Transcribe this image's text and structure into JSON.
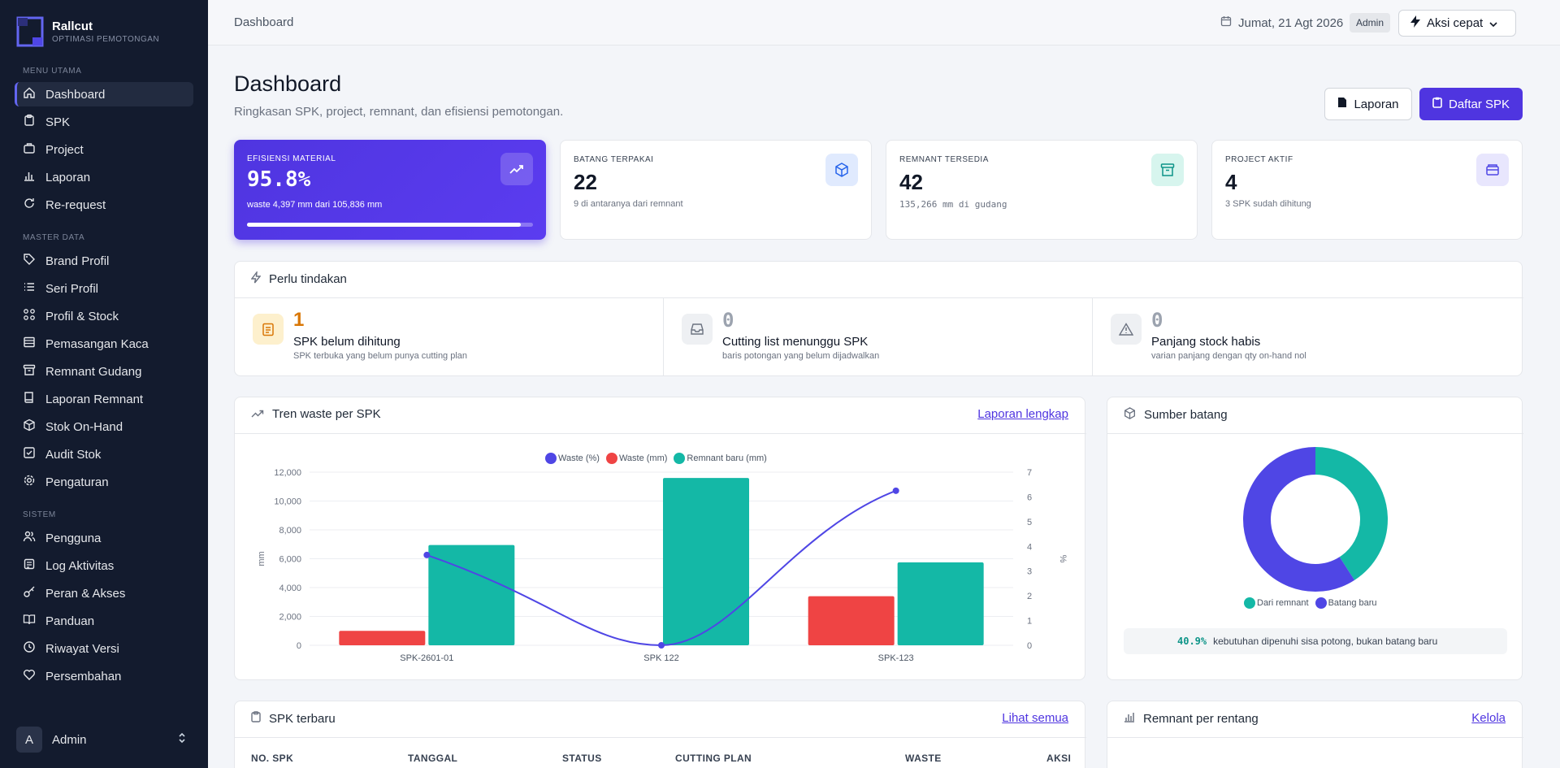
{
  "brand": {
    "name": "Rallcut",
    "subtitle": "OPTIMASI PEMOTONGAN"
  },
  "sidebar": {
    "sections": {
      "main": "MENU UTAMA",
      "master": "MASTER DATA",
      "system": "SISTEM"
    },
    "main_items": [
      {
        "label": "Dashboard",
        "icon": "home-icon"
      },
      {
        "label": "SPK",
        "icon": "clipboard-icon"
      },
      {
        "label": "Project",
        "icon": "briefcase-icon"
      },
      {
        "label": "Laporan",
        "icon": "bar-chart-icon"
      },
      {
        "label": "Re-request",
        "icon": "refresh-icon"
      }
    ],
    "master_items": [
      {
        "label": "Brand Profil",
        "icon": "tag-icon"
      },
      {
        "label": "Seri Profil",
        "icon": "list-icon"
      },
      {
        "label": "Profil & Stock",
        "icon": "grid-icon"
      },
      {
        "label": "Pemasangan Kaca",
        "icon": "window-icon"
      },
      {
        "label": "Remnant Gudang",
        "icon": "archive-icon"
      },
      {
        "label": "Laporan Remnant",
        "icon": "book-icon"
      },
      {
        "label": "Stok On-Hand",
        "icon": "box-icon"
      },
      {
        "label": "Audit Stok",
        "icon": "checklist-icon"
      },
      {
        "label": "Pengaturan",
        "icon": "gear-icon"
      }
    ],
    "system_items": [
      {
        "label": "Pengguna",
        "icon": "users-icon"
      },
      {
        "label": "Log Aktivitas",
        "icon": "log-icon"
      },
      {
        "label": "Peran & Akses",
        "icon": "key-icon"
      },
      {
        "label": "Panduan",
        "icon": "book-open-icon"
      },
      {
        "label": "Riwayat Versi",
        "icon": "clock-icon"
      },
      {
        "label": "Persembahan",
        "icon": "heart-icon"
      }
    ],
    "user": {
      "initial": "A",
      "name": "Admin"
    }
  },
  "topbar": {
    "breadcrumb": "Dashboard",
    "date": "Jumat, 21 Agt 2026",
    "role": "Admin",
    "quick_action": "Aksi cepat"
  },
  "header": {
    "title": "Dashboard",
    "subtitle": "Ringkasan SPK, project, remnant, dan efisiensi pemotongan.",
    "report_button": "Laporan",
    "spk_button": "Daftar SPK"
  },
  "kpis": {
    "efficiency": {
      "label": "EFISIENSI MATERIAL",
      "value": "95.8%",
      "sub": "waste 4,397 mm dari 105,836 mm",
      "progress": 0.958
    },
    "bars_used": {
      "label": "BATANG TERPAKAI",
      "value": "22",
      "sub": "9 di antaranya dari remnant"
    },
    "remnant": {
      "label": "REMNANT TERSEDIA",
      "value": "42",
      "sub": "135,266 mm di gudang"
    },
    "projects": {
      "label": "PROJECT AKTIF",
      "value": "4",
      "sub": "3 SPK sudah dihitung"
    }
  },
  "actions": {
    "title": "Perlu tindakan",
    "items": [
      {
        "count": "1",
        "title": "SPK belum dihitung",
        "desc": "SPK terbuka yang belum punya cutting plan",
        "color": "#d97706"
      },
      {
        "count": "0",
        "title": "Cutting list menunggu SPK",
        "desc": "baris potongan yang belum dijadwalkan",
        "color": "#9ca3af"
      },
      {
        "count": "0",
        "title": "Panjang stock habis",
        "desc": "varian panjang dengan qty on-hand nol",
        "color": "#9ca3af"
      }
    ]
  },
  "trend": {
    "title": "Tren waste per SPK",
    "link": "Laporan lengkap",
    "legend": [
      "Waste (%)",
      "Waste (mm)",
      "Remnant baru (mm)"
    ]
  },
  "chart_data": [
    {
      "type": "bar",
      "categories": [
        "SPK-2601-01",
        "SPK 122",
        "SPK-123"
      ],
      "series": [
        {
          "name": "Waste (mm)",
          "type": "bar",
          "axis": "left",
          "color": "#ef4444",
          "values": [
            1000,
            0,
            3400
          ]
        },
        {
          "name": "Remnant baru (mm)",
          "type": "bar",
          "axis": "left",
          "color": "#14b8a6",
          "values": [
            6950,
            11600,
            5750
          ]
        },
        {
          "name": "Waste (%)",
          "type": "line",
          "axis": "right",
          "color": "#4f46e5",
          "values": [
            3.65,
            0.0,
            6.25
          ]
        }
      ],
      "ylabel": "mm",
      "y2label": "%",
      "ylim": [
        0,
        12000
      ],
      "yticks": [
        "0",
        "2,000",
        "4,000",
        "6,000",
        "8,000",
        "10,000",
        "12,000"
      ],
      "y2lim": [
        0,
        7
      ],
      "y2ticks": [
        "0",
        "1",
        "2",
        "3",
        "4",
        "5",
        "6",
        "7"
      ],
      "grid": true,
      "legend": "top"
    },
    {
      "type": "pie",
      "donut": true,
      "categories": [
        "Dari remnant",
        "Batang baru"
      ],
      "values": [
        40.9,
        59.1
      ],
      "colors": [
        "#14b8a6",
        "#4f46e5"
      ],
      "legend": "bottom"
    }
  ],
  "source": {
    "title": "Sumber batang",
    "pct": "40.9%",
    "note": "kebutuhan dipenuhi sisa potong, bukan batang baru"
  },
  "spk_recent": {
    "title": "SPK terbaru",
    "link": "Lihat semua",
    "columns": [
      "NO. SPK",
      "TANGGAL",
      "STATUS",
      "CUTTING PLAN",
      "WASTE",
      "AKSI"
    ]
  },
  "remnant_range": {
    "title": "Remnant per rentang",
    "link": "Kelola"
  }
}
